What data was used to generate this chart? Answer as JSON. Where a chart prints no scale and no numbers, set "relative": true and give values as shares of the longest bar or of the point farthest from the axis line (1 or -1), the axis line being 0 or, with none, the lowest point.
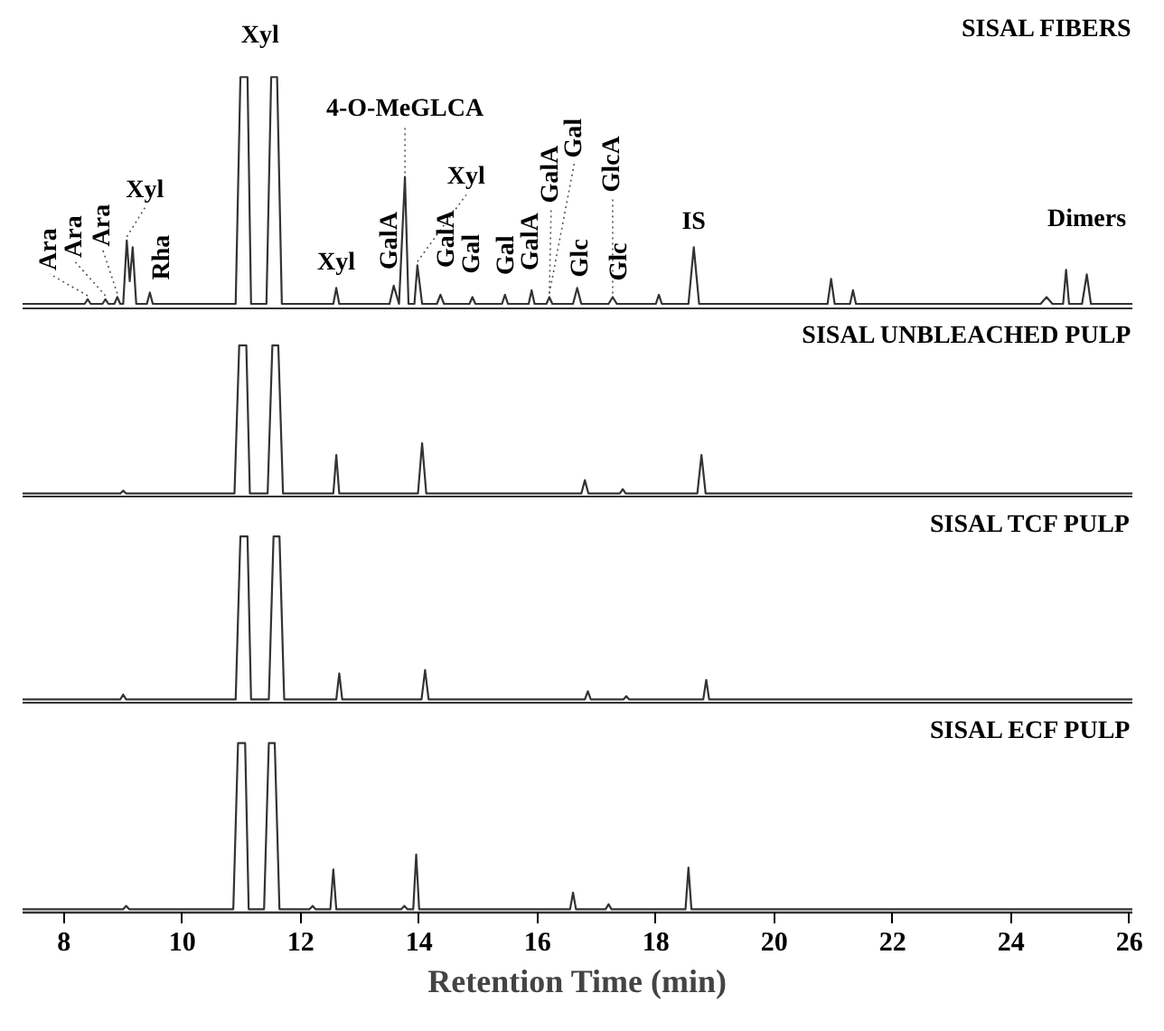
{
  "chart_data": [
    {
      "type": "line",
      "relative": true,
      "tick_labels": false,
      "xlim": [
        7.3,
        26.05
      ],
      "series": [
        {
          "name": "SISAL FIBERS",
          "color": "#333333",
          "x": [
            7.3,
            8.35,
            8.4,
            8.45,
            8.65,
            8.7,
            8.75,
            8.85,
            8.9,
            8.95,
            9.0,
            9.06,
            9.11,
            9.16,
            9.22,
            9.4,
            9.45,
            9.5,
            10.9,
            10.98,
            11.1,
            11.16,
            11.42,
            11.5,
            11.6,
            11.68,
            12.55,
            12.6,
            12.65,
            13.5,
            13.57,
            13.66,
            13.76,
            13.82,
            13.92,
            13.97,
            14.05,
            14.3,
            14.36,
            14.42,
            14.85,
            14.9,
            14.95,
            15.4,
            15.45,
            15.5,
            15.85,
            15.9,
            15.95,
            16.15,
            16.2,
            16.25,
            16.6,
            16.67,
            16.74,
            17.2,
            17.27,
            17.34,
            18.0,
            18.05,
            18.1,
            18.55,
            18.64,
            18.73,
            20.9,
            20.96,
            21.02,
            21.28,
            21.33,
            21.38,
            24.5,
            24.6,
            24.7,
            24.88,
            24.93,
            24.98,
            25.2,
            25.28,
            25.35,
            26.05
          ],
          "values": [
            0,
            0,
            0.02,
            0,
            0,
            0.02,
            0,
            0,
            0.03,
            0,
            0,
            0.28,
            0.1,
            0.25,
            0,
            0,
            0.05,
            0,
            0,
            1,
            1,
            0,
            0,
            1,
            1,
            0,
            0,
            0.07,
            0,
            0,
            0.08,
            0,
            0.56,
            0,
            0,
            0.17,
            0,
            0,
            0.04,
            0,
            0,
            0.03,
            0,
            0,
            0.04,
            0,
            0,
            0.06,
            0,
            0,
            0.03,
            0,
            0,
            0.07,
            0,
            0,
            0.03,
            0,
            0,
            0.04,
            0,
            0,
            0.25,
            0,
            0,
            0.11,
            0,
            0,
            0.06,
            0,
            0,
            0.03,
            0,
            0,
            0.15,
            0,
            0,
            0.13,
            0,
            0
          ]
        }
      ],
      "annotations": [
        {
          "text": "Ara",
          "x": 8.4,
          "y": 0.02
        },
        {
          "text": "Ara",
          "x": 8.7,
          "y": 0.02
        },
        {
          "text": "Ara",
          "x": 8.9,
          "y": 0.03
        },
        {
          "text": "Xyl",
          "x": 9.06,
          "y": 0.28
        },
        {
          "text": "Rha",
          "x": 9.45,
          "y": 0.05
        },
        {
          "text": "Xyl",
          "x": 11.1,
          "y": 1
        },
        {
          "text": "Xyl",
          "x": 12.6,
          "y": 0.07
        },
        {
          "text": "GalA",
          "x": 13.57,
          "y": 0.08
        },
        {
          "text": "4-O-MeGLCA",
          "x": 13.76,
          "y": 0.56
        },
        {
          "text": "Xyl",
          "x": 13.97,
          "y": 0.17
        },
        {
          "text": "GalA",
          "x": 14.36,
          "y": 0.04
        },
        {
          "text": "Gal",
          "x": 14.9,
          "y": 0.03
        },
        {
          "text": "Gal",
          "x": 15.45,
          "y": 0.04
        },
        {
          "text": "GalA",
          "x": 15.9,
          "y": 0.06
        },
        {
          "text": "GalA",
          "x": 16.2,
          "y": 0.03
        },
        {
          "text": "Gal",
          "x": 16.2,
          "y": 0.03
        },
        {
          "text": "Glc",
          "x": 16.67,
          "y": 0.07
        },
        {
          "text": "GlcA",
          "x": 17.27,
          "y": 0.03
        },
        {
          "text": "Glc",
          "x": 17.27,
          "y": 0.03
        },
        {
          "text": "IS",
          "x": 18.64,
          "y": 0.25
        },
        {
          "text": "Dimers",
          "x": 25.28,
          "y": 0.15
        }
      ]
    },
    {
      "type": "line",
      "relative": true,
      "tick_labels": false,
      "xlim": [
        7.3,
        26.05
      ],
      "series": [
        {
          "name": "SISAL UNBLEACHED PULP",
          "color": "#333333",
          "x": [
            7.3,
            8.95,
            9.0,
            9.05,
            10.88,
            10.96,
            11.08,
            11.14,
            11.44,
            11.52,
            11.62,
            11.7,
            12.55,
            12.6,
            12.65,
            13.98,
            14.05,
            14.12,
            16.74,
            16.8,
            16.86,
            17.39,
            17.44,
            17.49,
            18.7,
            18.77,
            18.84,
            26.05
          ],
          "values": [
            0,
            0,
            0.02,
            0,
            0,
            1,
            1,
            0,
            0,
            1,
            1,
            0,
            0,
            0.26,
            0,
            0,
            0.34,
            0,
            0,
            0.09,
            0,
            0,
            0.03,
            0,
            0,
            0.26,
            0,
            0
          ]
        }
      ]
    },
    {
      "type": "line",
      "relative": true,
      "tick_labels": false,
      "xlim": [
        7.3,
        26.05
      ],
      "series": [
        {
          "name": "SISAL TCF PULP",
          "color": "#333333",
          "x": [
            7.3,
            8.95,
            9.0,
            9.05,
            10.9,
            10.98,
            11.1,
            11.16,
            11.46,
            11.54,
            11.64,
            11.72,
            12.6,
            12.65,
            12.7,
            14.04,
            14.1,
            14.16,
            16.8,
            16.85,
            16.9,
            17.45,
            17.5,
            17.55,
            18.8,
            18.85,
            18.9,
            26.05
          ],
          "values": [
            0,
            0,
            0.03,
            0,
            0,
            1,
            1,
            0,
            0,
            1,
            1,
            0,
            0,
            0.16,
            0,
            0,
            0.18,
            0,
            0,
            0.05,
            0,
            0,
            0.02,
            0,
            0,
            0.12,
            0,
            0
          ]
        }
      ]
    },
    {
      "type": "line",
      "relative": true,
      "tick_labels": "x",
      "xlim": [
        7.3,
        26.05
      ],
      "xticks": [
        8,
        10,
        12,
        14,
        16,
        18,
        20,
        22,
        24,
        26
      ],
      "xlabel": "Retention Time (min)",
      "series": [
        {
          "name": "SISAL ECF PULP",
          "color": "#333333",
          "x": [
            7.3,
            9.0,
            9.05,
            9.1,
            10.86,
            10.94,
            11.06,
            11.12,
            11.38,
            11.46,
            11.56,
            11.64,
            12.15,
            12.2,
            12.25,
            12.5,
            12.55,
            12.6,
            13.7,
            13.75,
            13.8,
            13.9,
            13.95,
            14.0,
            16.55,
            16.6,
            16.65,
            17.15,
            17.2,
            17.25,
            18.5,
            18.55,
            18.6,
            26.05
          ],
          "values": [
            0,
            0,
            0.02,
            0,
            0,
            1,
            1,
            0,
            0,
            1,
            1,
            0,
            0,
            0.02,
            0,
            0,
            0.24,
            0,
            0,
            0.02,
            0,
            0,
            0.33,
            0,
            0,
            0.1,
            0,
            0,
            0.03,
            0,
            0,
            0.25,
            0,
            0
          ]
        }
      ]
    }
  ]
}
